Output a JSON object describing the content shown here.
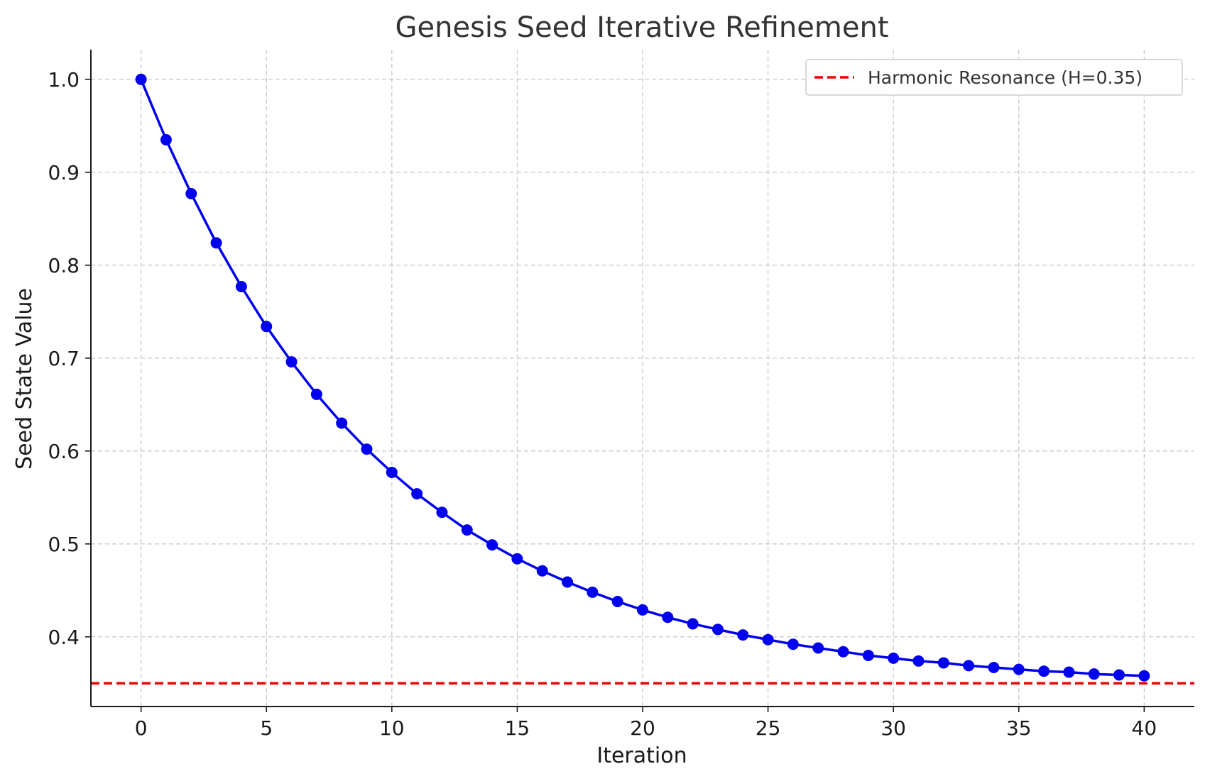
{
  "chart_data": {
    "type": "line",
    "title": "Genesis Seed Iterative Refinement",
    "xlabel": "Iteration",
    "ylabel": "Seed State Value",
    "xlim": [
      -2,
      42
    ],
    "ylim": [
      0.325,
      1.032
    ],
    "xticks": [
      0,
      5,
      10,
      15,
      20,
      25,
      30,
      35,
      40
    ],
    "xtick_labels": [
      "0",
      "5",
      "10",
      "15",
      "20",
      "25",
      "30",
      "35",
      "40"
    ],
    "yticks": [
      0.4,
      0.5,
      0.6,
      0.7,
      0.8,
      0.9,
      1.0
    ],
    "ytick_labels": [
      "0.4",
      "0.5",
      "0.6",
      "0.7",
      "0.8",
      "0.9",
      "1.0"
    ],
    "grid": true,
    "legend_position": "top-right",
    "series": [
      {
        "color": "#0000ee",
        "marker": "circle",
        "x": [
          0,
          1,
          2,
          3,
          4,
          5,
          6,
          7,
          8,
          9,
          10,
          11,
          12,
          13,
          14,
          15,
          16,
          17,
          18,
          19,
          20,
          21,
          22,
          23,
          24,
          25,
          26,
          27,
          28,
          29,
          30,
          31,
          32,
          33,
          34,
          35,
          36,
          37,
          38,
          39,
          40
        ],
        "y": [
          1.0,
          0.935,
          0.877,
          0.824,
          0.777,
          0.734,
          0.696,
          0.661,
          0.63,
          0.602,
          0.577,
          0.554,
          0.534,
          0.515,
          0.499,
          0.484,
          0.471,
          0.459,
          0.448,
          0.438,
          0.429,
          0.421,
          0.414,
          0.408,
          0.402,
          0.397,
          0.392,
          0.388,
          0.384,
          0.38,
          0.377,
          0.374,
          0.372,
          0.369,
          0.367,
          0.365,
          0.363,
          0.362,
          0.36,
          0.359,
          0.358
        ]
      }
    ],
    "reference_line": {
      "name": "Harmonic Resonance (H=0.35)",
      "y": 0.35,
      "color": "#ee0000",
      "style": "dashed"
    }
  }
}
